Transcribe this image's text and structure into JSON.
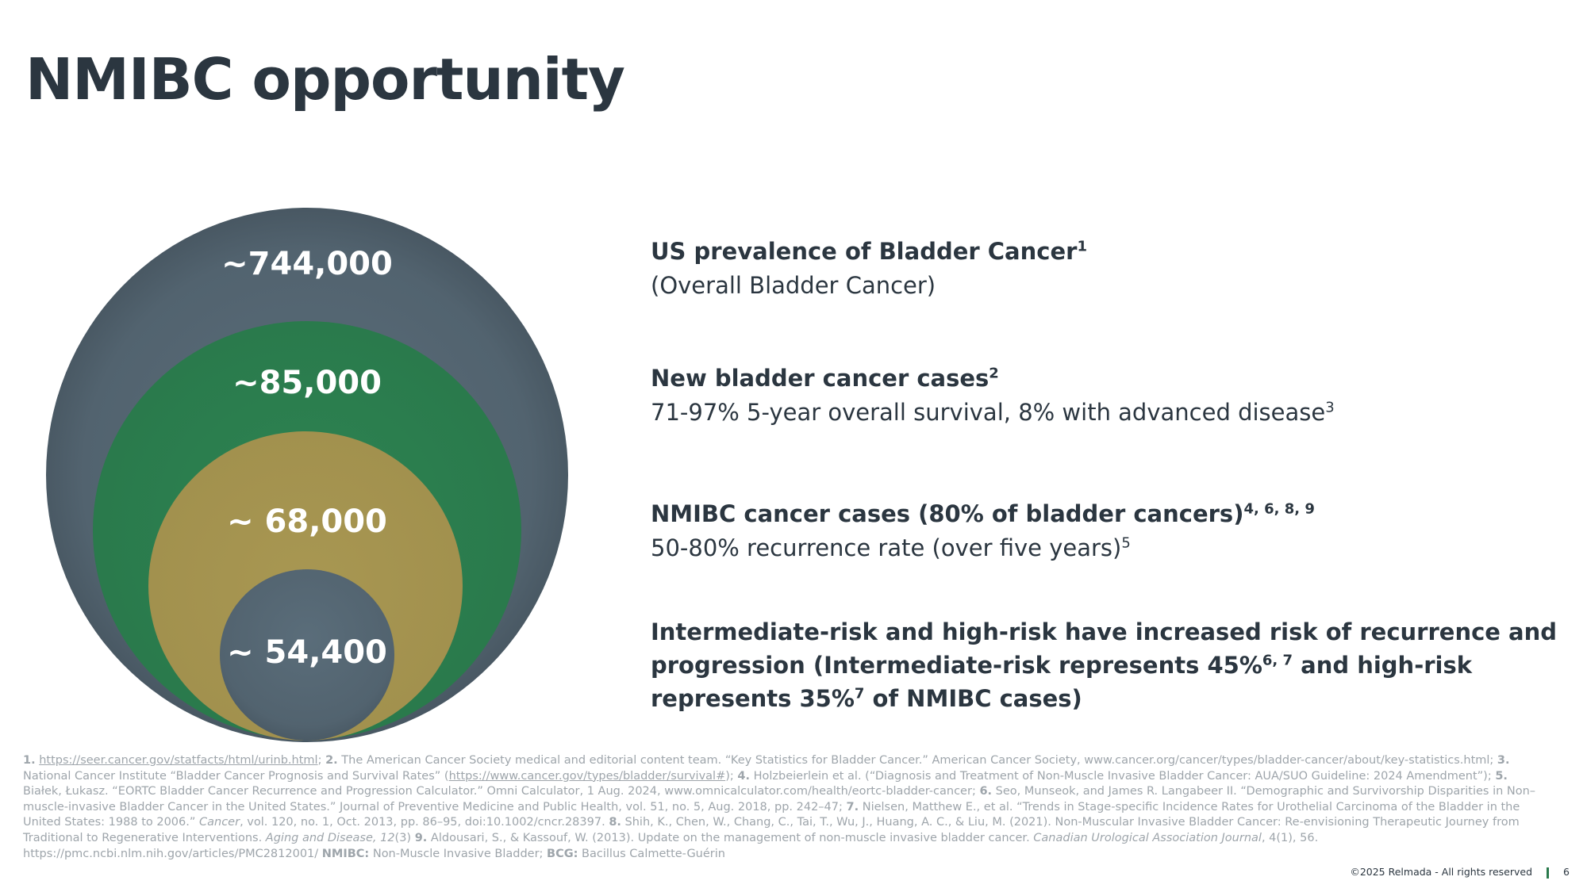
{
  "title": "NMIBC opportunity",
  "circles": {
    "c1": "~744,000",
    "c2": "~85,000",
    "c3": "~ 68,000",
    "c4": "~ 54,400"
  },
  "blocks": {
    "b1_head": "US prevalence of Bladder Cancer",
    "b1_head_sup": "1",
    "b1_sub": "(Overall Bladder Cancer)",
    "b2_head": "New bladder cancer cases",
    "b2_head_sup": "2",
    "b2_sub": "71-97% 5-year overall survival, 8% with advanced disease",
    "b2_sub_sup": "3",
    "b3_head": "NMIBC cancer cases (80% of bladder cancers)",
    "b3_head_sup": "4, 6, 8, 9",
    "b3_sub": "50-80% recurrence rate (over five years)",
    "b3_sub_sup": "5",
    "b4_a": "Intermediate-risk and high-risk have increased risk of recurrence and progression (Intermediate-risk represents 45%",
    "b4_sup1": "6, 7",
    "b4_b": " and high-risk represents 35%",
    "b4_sup2": "7",
    "b4_c": " of NMIBC cases)"
  },
  "refs": {
    "r1_num": "1.",
    "r1_link": "https://seer.cancer.gov/statfacts/html/urinb.html",
    "r1_tail": "; ",
    "r2_num": "2.",
    "r2_text": " The American Cancer Society medical and editorial content team. “Key Statistics for Bladder Cancer.” American Cancer Society, www.cancer.org/cancer/types/bladder-cancer/about/key-statistics.html; ",
    "r3_num": "3.",
    "r3_text": " National Cancer Institute “Bladder Cancer Prognosis and Survival Rates” (",
    "r3_link": "https://www.cancer.gov/types/bladder/survival#",
    "r3_tail": "); ",
    "r4_num": "4.",
    "r4_text": " Holzbeierlein et al. (“Diagnosis and Treatment of Non-Muscle Invasive Bladder Cancer: AUA/SUO Guideline: 2024 Amendment”); ",
    "r5_num": "5.",
    "r5_text": " Białek, Łukasz. “EORTC Bladder Cancer Recurrence and Progression Calculator.” Omni Calculator, 1 Aug. 2024, www.omnicalculator.com/health/eortc-bladder-cancer; ",
    "r6_num": "6.",
    "r6_text": " Seo, Munseok, and James R. Langabeer II. “Demographic and Survivorship Disparities in Non–muscle-invasive Bladder Cancer in the United States.” Journal of Preventive Medicine and Public Health, vol. 51, no. 5, Aug. 2018, pp. 242–47; ",
    "r7_num": "7.",
    "r7_text": " Nielsen, Matthew E., et al. “Trends in Stage-specific Incidence Rates for Urothelial Carcinoma of the Bladder in the United States: 1988 to 2006.” ",
    "r7_journal": "Cancer",
    "r7_tail": ", vol. 120, no. 1, Oct. 2013, pp. 86–95, doi:10.1002/cncr.28397. ",
    "r8_num": "8.",
    "r8_text": "  Shih, K., Chen, W., Chang, C., Tai, T., Wu, J., Huang, A. C., & Liu, M. (2021). Non-Muscular Invasive Bladder Cancer: Re-envisioning Therapeutic Journey from Traditional to Regenerative Interventions. ",
    "r8_journal": "Aging and Disease, 12",
    "r8_tail": "(3) ",
    "r9_num": "9.",
    "r9_text": " Aldousari, S., & Kassouf, W. (2013). Update on the management of non-muscle invasive bladder cancer. ",
    "r9_journal": "Canadian Urological Association Journal",
    "r9_tail": ", 4(1), 56.  https://pmc.ncbi.nlm.nih.gov/articles/PMC2812001/ ",
    "abbr1_key": "NMIBC:",
    "abbr1_val": " Non-Muscle Invasive Bladder; ",
    "abbr2_key": "BCG:",
    "abbr2_val": " Bacillus Calmette-Guérin"
  },
  "footer": {
    "copyright": "©2025 Relmada - All rights reserved",
    "page": "6"
  }
}
